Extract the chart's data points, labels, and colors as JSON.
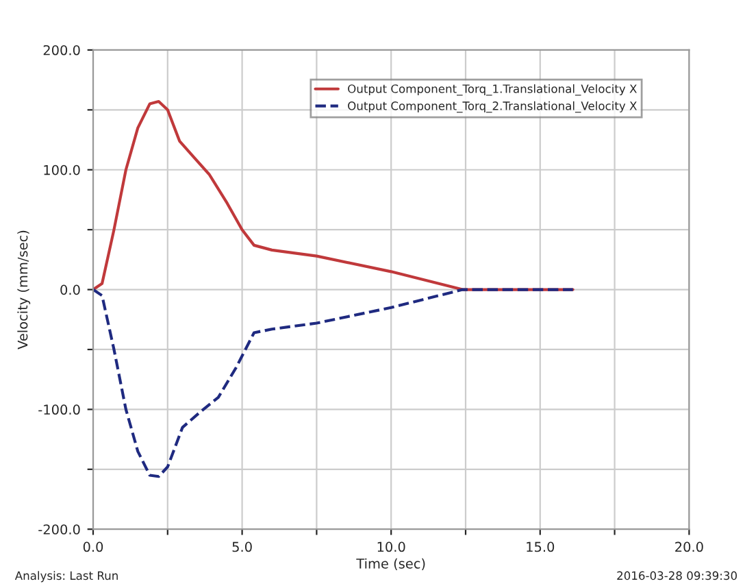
{
  "chart_data": {
    "type": "line",
    "xlabel": "Time (sec)",
    "ylabel": "Velocity (mm/sec)",
    "annotations": [
      "Analysis: Last Run",
      "2016-03-28 09:39:30"
    ],
    "xlim": [
      0,
      20
    ],
    "ylim": [
      -200,
      200
    ],
    "xticks": [
      {
        "value": 0,
        "label": "0.0"
      },
      {
        "value": 2.5,
        "label": null
      },
      {
        "value": 5,
        "label": "5.0"
      },
      {
        "value": 7.5,
        "label": null
      },
      {
        "value": 10,
        "label": "10.0"
      },
      {
        "value": 12.5,
        "label": null
      },
      {
        "value": 15,
        "label": "15.0"
      },
      {
        "value": 17.5,
        "label": null
      },
      {
        "value": 20,
        "label": "20.0"
      }
    ],
    "yticks": [
      {
        "value": -200,
        "label": "-200.0"
      },
      {
        "value": -150,
        "label": null
      },
      {
        "value": -100,
        "label": "-100.0"
      },
      {
        "value": -50,
        "label": null
      },
      {
        "value": 0,
        "label": "0.0"
      },
      {
        "value": 50,
        "label": null
      },
      {
        "value": 100,
        "label": "100.0"
      },
      {
        "value": 150,
        "label": null
      },
      {
        "value": 200,
        "label": "200.0"
      }
    ],
    "grid": true,
    "legend": "top right",
    "series": [
      {
        "name": "Output Component_Torq_1.Translational_Velocity X",
        "color": "#c0393b",
        "line_style": "solid",
        "x": [
          0,
          0.3,
          0.7,
          1.1,
          1.5,
          1.9,
          2.2,
          2.5,
          2.9,
          3.4,
          3.9,
          4.5,
          5.0,
          5.4,
          6.0,
          7.5,
          10,
          12.4,
          16.1
        ],
        "values": [
          0,
          5,
          50,
          100,
          135,
          155,
          157,
          150,
          124,
          110,
          96,
          72,
          50,
          37,
          33,
          28,
          15,
          0,
          0
        ]
      },
      {
        "name": "Output Component_Torq_2.Translational_Velocity X",
        "color": "#1f2a80",
        "line_style": "dashed",
        "x": [
          0,
          0.3,
          0.7,
          1.1,
          1.5,
          1.9,
          2.2,
          2.5,
          3.0,
          3.6,
          4.2,
          4.8,
          5.4,
          6.0,
          7.5,
          10,
          12.4,
          16.1
        ],
        "values": [
          0,
          -5,
          -50,
          -100,
          -135,
          -155,
          -156,
          -148,
          -115,
          -102,
          -90,
          -65,
          -36,
          -33,
          -28,
          -15,
          0,
          0
        ]
      }
    ]
  }
}
